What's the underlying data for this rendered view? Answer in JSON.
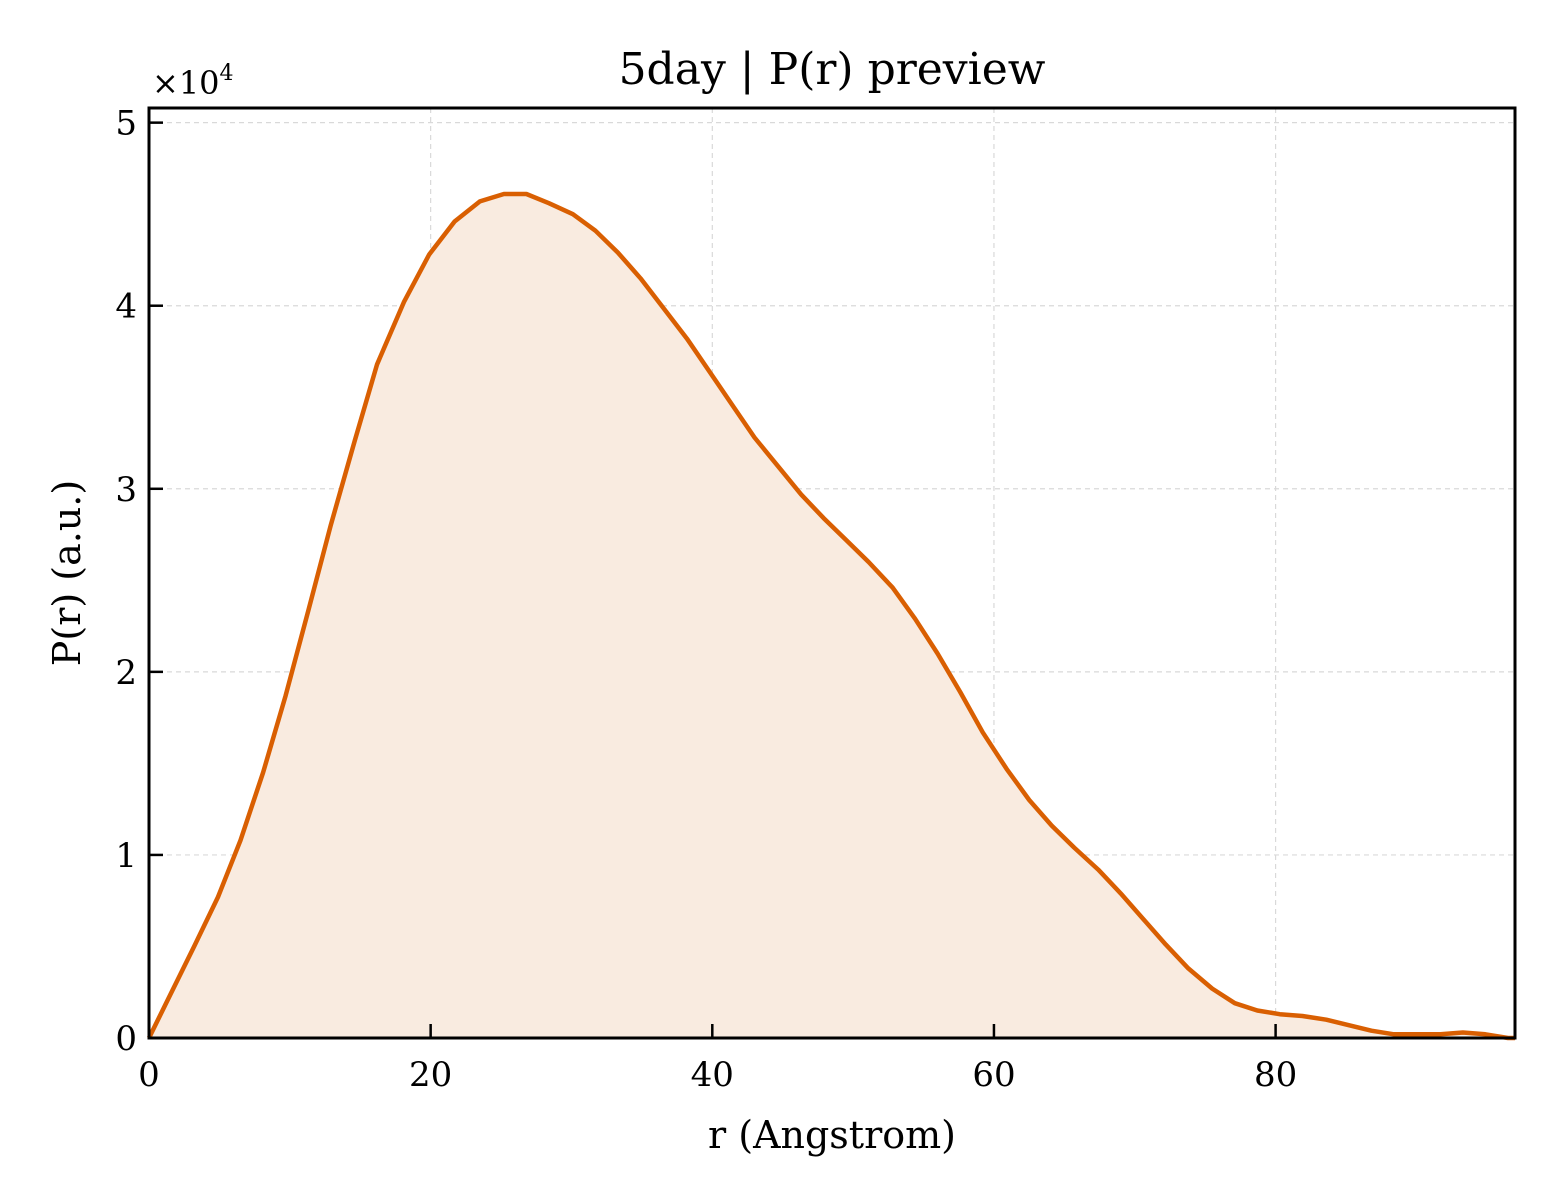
{
  "chart_data": {
    "type": "area",
    "title": "5day | P(r) preview",
    "xlabel": "r (Angstrom)",
    "ylabel": "P(r) (a.u.)",
    "y_multiplier_label": "×10",
    "y_multiplier_exponent": "4",
    "xlim": [
      0,
      97
    ],
    "ylim": [
      0,
      5.08
    ],
    "x_ticks": [
      0,
      20,
      40,
      60,
      80
    ],
    "y_ticks": [
      0,
      1,
      2,
      3,
      4,
      5
    ],
    "grid": true,
    "line_color": "#d95f02",
    "fill_color": "#f9ebe0",
    "series": [
      {
        "x": [
          0,
          1.6,
          3.2,
          4.9,
          6.5,
          8.1,
          9.7,
          11.3,
          12.9,
          14.6,
          16.2,
          18.1,
          19.9,
          21.7,
          23.5,
          25.2,
          26.8,
          28.4,
          30.1,
          31.7,
          33.3,
          34.9,
          36.5,
          38.2,
          39.8,
          41.4,
          43.0,
          44.7,
          46.3,
          47.9,
          49.5,
          51.1,
          52.8,
          54.4,
          56.0,
          57.6,
          59.2,
          60.9,
          62.5,
          64.1,
          65.7,
          67.4,
          69.0,
          70.6,
          72.2,
          73.8,
          75.5,
          77.1,
          78.7,
          80.3,
          81.9,
          83.6,
          85.2,
          86.8,
          88.4,
          90.0,
          91.7,
          93.3,
          94.9,
          96.5,
          97.0
        ],
        "y": [
          0.0,
          0.25,
          0.5,
          0.77,
          1.08,
          1.45,
          1.87,
          2.33,
          2.8,
          3.26,
          3.68,
          4.02,
          4.28,
          4.46,
          4.57,
          4.61,
          4.61,
          4.56,
          4.5,
          4.41,
          4.29,
          4.15,
          3.99,
          3.82,
          3.64,
          3.46,
          3.28,
          3.12,
          2.97,
          2.84,
          2.72,
          2.6,
          2.46,
          2.29,
          2.1,
          1.89,
          1.67,
          1.47,
          1.3,
          1.16,
          1.04,
          0.92,
          0.79,
          0.65,
          0.51,
          0.38,
          0.27,
          0.19,
          0.15,
          0.13,
          0.12,
          0.1,
          0.07,
          0.04,
          0.02,
          0.02,
          0.02,
          0.03,
          0.02,
          0.0,
          0.0
        ]
      }
    ]
  }
}
